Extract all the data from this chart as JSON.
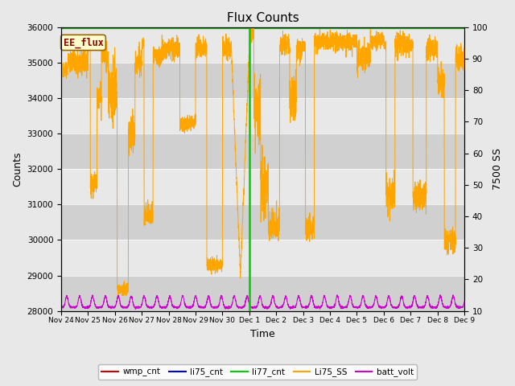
{
  "title": "Flux Counts",
  "ylabel_left": "Counts",
  "ylabel_right": "7500 SS",
  "xlabel": "Time",
  "ylim_left": [
    28000,
    36000
  ],
  "ylim_right": [
    10,
    100
  ],
  "fig_bg_color": "#e8e8e8",
  "plot_bg_light": "#e8e8e8",
  "plot_bg_dark": "#d0d0d0",
  "annotation_text": "EE_flux",
  "annotation_bg": "#ffffcc",
  "annotation_border": "#996600",
  "annotation_text_color": "#8b0000",
  "li77_color": "#00cc00",
  "li75_ss_color": "#ffa500",
  "batt_volt_color": "#cc00cc",
  "wmp_cnt_color": "#cc0000",
  "li75_cnt_color": "#0000cc",
  "li77_cnt_color": "#00cc00",
  "x_tick_labels": [
    "Nov 24",
    "Nov 25",
    "Nov 26",
    "Nov 27",
    "Nov 28",
    "Nov 29",
    "Nov 30",
    "Dec 1",
    "Dec 2",
    "Dec 3",
    "Dec 4",
    "Dec 5",
    "Dec 6",
    "Dec 7",
    "Dec 8",
    "Dec 9"
  ],
  "num_days": 15,
  "seed": 42
}
